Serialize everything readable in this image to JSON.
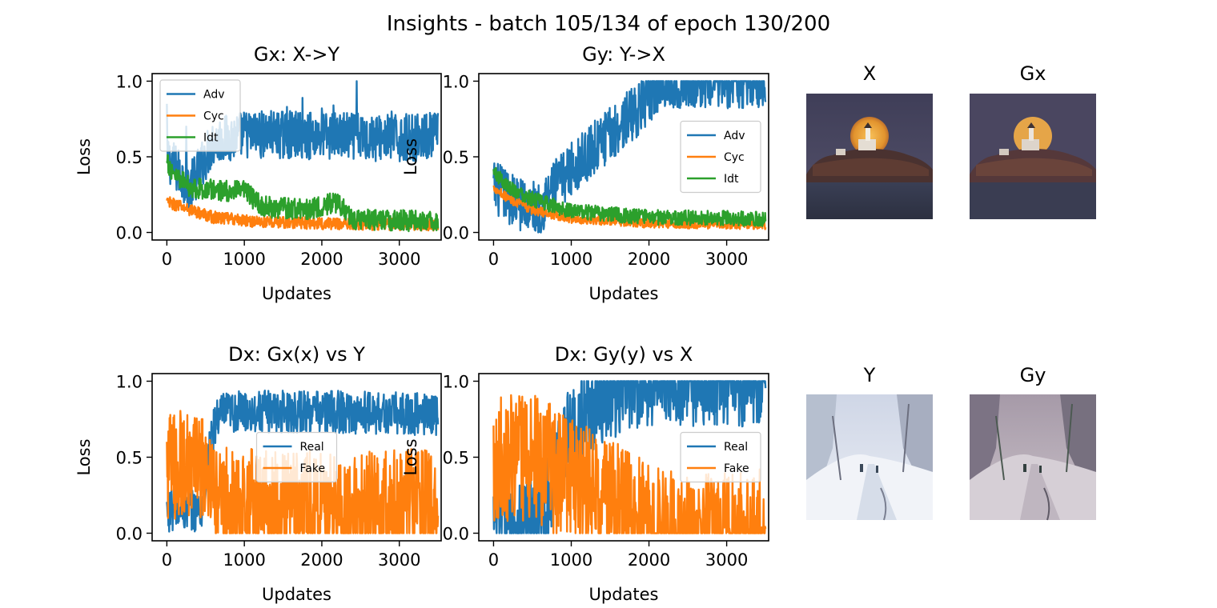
{
  "figure": {
    "suptitle": "Insights - batch 105/134 of epoch 130/200"
  },
  "colors": {
    "blue": "#1f77b4",
    "orange": "#ff7f0e",
    "green": "#2ca02c"
  },
  "chart_data": [
    {
      "type": "line",
      "title": "Gx: X->Y",
      "xlabel": "Updates",
      "ylabel": "Loss",
      "xlim": [
        -190,
        3540
      ],
      "ylim": [
        -0.05,
        1.05
      ],
      "xticks": [
        "0",
        "1000",
        "2000",
        "3000"
      ],
      "yticks": [
        "0.0",
        "0.5",
        "1.0"
      ],
      "legend_location": "upper-left",
      "grid": false,
      "series": [
        {
          "name": "Adv",
          "color": "#1f77b4",
          "noise": 0.16,
          "points": [
            [
              0,
              0.5
            ],
            [
              300,
              0.3
            ],
            [
              600,
              0.6
            ],
            [
              1000,
              0.65
            ],
            [
              2000,
              0.64
            ],
            [
              3000,
              0.62
            ],
            [
              3500,
              0.64
            ]
          ],
          "spikes": [
            [
              0,
              0.85
            ],
            [
              250,
              0.7
            ],
            [
              1250,
              0.78
            ],
            [
              1550,
              0.83
            ],
            [
              1750,
              0.89
            ],
            [
              2000,
              0.82
            ],
            [
              2150,
              0.84
            ],
            [
              2450,
              1.0
            ],
            [
              2900,
              0.8
            ],
            [
              3350,
              0.78
            ]
          ]
        },
        {
          "name": "Cyc",
          "color": "#ff7f0e",
          "noise": 0.04,
          "points": [
            [
              0,
              0.2
            ],
            [
              300,
              0.15
            ],
            [
              600,
              0.1
            ],
            [
              1200,
              0.07
            ],
            [
              2000,
              0.06
            ],
            [
              3500,
              0.05
            ]
          ]
        },
        {
          "name": "Idt",
          "color": "#2ca02c",
          "noise": 0.07,
          "points": [
            [
              0,
              0.45
            ],
            [
              300,
              0.3
            ],
            [
              600,
              0.28
            ],
            [
              1000,
              0.27
            ],
            [
              1250,
              0.17
            ],
            [
              1800,
              0.15
            ],
            [
              2200,
              0.2
            ],
            [
              2400,
              0.09
            ],
            [
              3500,
              0.07
            ]
          ]
        }
      ]
    },
    {
      "type": "line",
      "title": "Gy: Y->X",
      "xlabel": "Updates",
      "ylabel": "Loss",
      "xlim": [
        -190,
        3540
      ],
      "ylim": [
        -0.05,
        1.05
      ],
      "xticks": [
        "0",
        "1000",
        "2000",
        "3000"
      ],
      "yticks": [
        "0.0",
        "0.5",
        "1.0"
      ],
      "legend_location": "center-right",
      "grid": false,
      "series": [
        {
          "name": "Adv",
          "color": "#1f77b4",
          "noise": 0.18,
          "points": [
            [
              0,
              0.3
            ],
            [
              300,
              0.2
            ],
            [
              600,
              0.15
            ],
            [
              700,
              0.25
            ],
            [
              1000,
              0.42
            ],
            [
              1500,
              0.65
            ],
            [
              2000,
              0.88
            ],
            [
              2150,
              1.0
            ],
            [
              3500,
              1.0
            ]
          ]
        },
        {
          "name": "Cyc",
          "color": "#ff7f0e",
          "noise": 0.03,
          "points": [
            [
              0,
              0.3
            ],
            [
              200,
              0.22
            ],
            [
              500,
              0.15
            ],
            [
              1000,
              0.09
            ],
            [
              2000,
              0.06
            ],
            [
              3500,
              0.05
            ]
          ]
        },
        {
          "name": "Idt",
          "color": "#2ca02c",
          "noise": 0.05,
          "points": [
            [
              0,
              0.4
            ],
            [
              200,
              0.3
            ],
            [
              500,
              0.22
            ],
            [
              1000,
              0.14
            ],
            [
              2000,
              0.1
            ],
            [
              3500,
              0.09
            ]
          ]
        }
      ]
    },
    {
      "type": "line",
      "title": "Dx: Gx(x) vs Y",
      "xlabel": "Updates",
      "ylabel": "Loss",
      "xlim": [
        -190,
        3540
      ],
      "ylim": [
        -0.05,
        1.05
      ],
      "xticks": [
        "0",
        "1000",
        "2000",
        "3000"
      ],
      "yticks": [
        "0.0",
        "0.5",
        "1.0"
      ],
      "legend_location": "center",
      "grid": false,
      "series": [
        {
          "name": "Real",
          "color": "#1f77b4",
          "noise": 0.14,
          "points": [
            [
              0,
              0.15
            ],
            [
              450,
              0.15
            ],
            [
              550,
              0.55
            ],
            [
              650,
              0.78
            ],
            [
              1000,
              0.8
            ],
            [
              2000,
              0.8
            ],
            [
              3500,
              0.78
            ]
          ]
        },
        {
          "name": "Fake",
          "color": "#ff7f0e",
          "noise": 0.36,
          "points": [
            [
              0,
              0.45
            ],
            [
              450,
              0.45
            ],
            [
              600,
              0.22
            ],
            [
              1000,
              0.2
            ],
            [
              2000,
              0.18
            ],
            [
              3500,
              0.2
            ]
          ]
        }
      ]
    },
    {
      "type": "line",
      "title": "Dx: Gy(y) vs X",
      "xlabel": "Updates",
      "ylabel": "Loss",
      "xlim": [
        -190,
        3540
      ],
      "ylim": [
        -0.05,
        1.05
      ],
      "xticks": [
        "0",
        "1000",
        "2000",
        "3000"
      ],
      "yticks": [
        "0.0",
        "0.5",
        "1.0"
      ],
      "legend_location": "center-right",
      "grid": false,
      "series": [
        {
          "name": "Real",
          "color": "#1f77b4",
          "noise": 0.3,
          "points": [
            [
              0,
              0.1
            ],
            [
              650,
              0.1
            ],
            [
              800,
              0.45
            ],
            [
              1000,
              0.7
            ],
            [
              1500,
              0.92
            ],
            [
              2000,
              1.0
            ],
            [
              3500,
              1.0
            ]
          ]
        },
        {
          "name": "Fake",
          "color": "#ff7f0e",
          "noise": 0.42,
          "points": [
            [
              0,
              0.5
            ],
            [
              500,
              0.5
            ],
            [
              1000,
              0.35
            ],
            [
              1500,
              0.2
            ],
            [
              2000,
              0.06
            ],
            [
              2200,
              0.0
            ],
            [
              3500,
              0.0
            ]
          ]
        }
      ]
    }
  ],
  "images": [
    {
      "title": "X",
      "scene": "lighthouse-original"
    },
    {
      "title": "Gx",
      "scene": "lighthouse-translated"
    },
    {
      "title": "Y",
      "scene": "snow-painting-original"
    },
    {
      "title": "Gy",
      "scene": "snow-painting-translated"
    }
  ]
}
